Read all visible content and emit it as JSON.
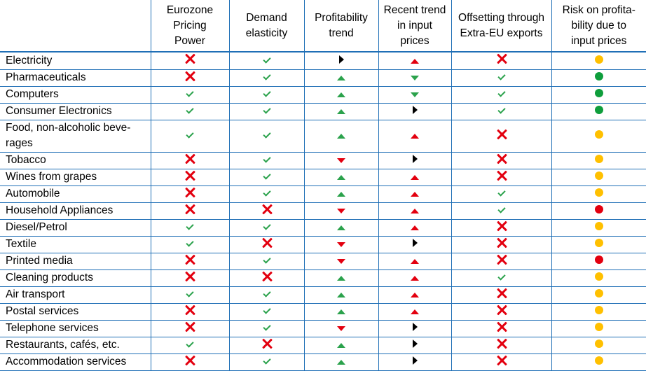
{
  "chart_data": {
    "type": "table",
    "symbol_legend": {
      "cross": "no (red cross)",
      "tick": "yes (green tick)",
      "up": "up-pointing triangle",
      "down": "down-pointing triangle",
      "right": "right-pointing triangle (black)",
      "dot": "traffic-light dot"
    },
    "colors": {
      "green": "#2ba24c",
      "red": "#e3000f",
      "black": "#000000",
      "yellow": "#ffc000",
      "dark_green": "#0f9e3c",
      "grid": "#1f6fb6"
    },
    "columns": [
      "",
      "Eurozone Pricing Power",
      "Demand elasticity",
      "Profitability trend",
      "Recent trend in input prices",
      "Offsetting through Extra-EU exports",
      "Risk on profita-bility due to input prices"
    ],
    "rows": [
      {
        "sector": "Electricity",
        "cells": [
          "cross",
          "tick",
          "right-black",
          "up-red",
          "cross",
          "dot-yellow"
        ]
      },
      {
        "sector": "Pharmaceuticals",
        "cells": [
          "cross",
          "tick",
          "up-green",
          "down-green",
          "tick",
          "dot-green"
        ]
      },
      {
        "sector": "Computers",
        "cells": [
          "tick",
          "tick",
          "up-green",
          "down-green",
          "tick",
          "dot-green"
        ]
      },
      {
        "sector": "Consumer Electronics",
        "cells": [
          "tick",
          "tick",
          "up-green",
          "right-black",
          "tick",
          "dot-green"
        ]
      },
      {
        "sector": "Food, non-alcoholic beve-rages",
        "cells": [
          "tick",
          "tick",
          "up-green",
          "up-red",
          "cross",
          "dot-yellow"
        ]
      },
      {
        "sector": "Tobacco",
        "cells": [
          "cross",
          "tick",
          "down-red",
          "right-black",
          "cross",
          "dot-yellow"
        ]
      },
      {
        "sector": "Wines from grapes",
        "cells": [
          "cross",
          "tick",
          "up-green",
          "up-red",
          "cross",
          "dot-yellow"
        ]
      },
      {
        "sector": "Automobile",
        "cells": [
          "cross",
          "tick",
          "up-green",
          "up-red",
          "tick",
          "dot-yellow"
        ]
      },
      {
        "sector": "Household Appliances",
        "cells": [
          "cross",
          "cross",
          "down-red",
          "up-red",
          "tick",
          "dot-red"
        ]
      },
      {
        "sector": "Diesel/Petrol",
        "cells": [
          "tick",
          "tick",
          "up-green",
          "up-red",
          "cross",
          "dot-yellow"
        ]
      },
      {
        "sector": "Textile",
        "cells": [
          "tick",
          "cross",
          "down-red",
          "right-black",
          "cross",
          "dot-yellow"
        ]
      },
      {
        "sector": "Printed media",
        "cells": [
          "cross",
          "tick",
          "down-red",
          "up-red",
          "cross",
          "dot-red"
        ]
      },
      {
        "sector": "Cleaning products",
        "cells": [
          "cross",
          "cross",
          "up-green",
          "up-red",
          "tick",
          "dot-yellow"
        ]
      },
      {
        "sector": "Air transport",
        "cells": [
          "tick",
          "tick",
          "up-green",
          "up-red",
          "cross",
          "dot-yellow"
        ]
      },
      {
        "sector": "Postal services",
        "cells": [
          "cross",
          "tick",
          "up-green",
          "up-red",
          "cross",
          "dot-yellow"
        ]
      },
      {
        "sector": "Telephone services",
        "cells": [
          "cross",
          "tick",
          "down-red",
          "right-black",
          "cross",
          "dot-yellow"
        ]
      },
      {
        "sector": "Restaurants, cafés, etc.",
        "cells": [
          "tick",
          "cross",
          "up-green",
          "right-black",
          "cross",
          "dot-yellow"
        ]
      },
      {
        "sector": "Accommodation services",
        "cells": [
          "cross",
          "tick",
          "up-green",
          "right-black",
          "cross",
          "dot-yellow"
        ]
      }
    ]
  }
}
